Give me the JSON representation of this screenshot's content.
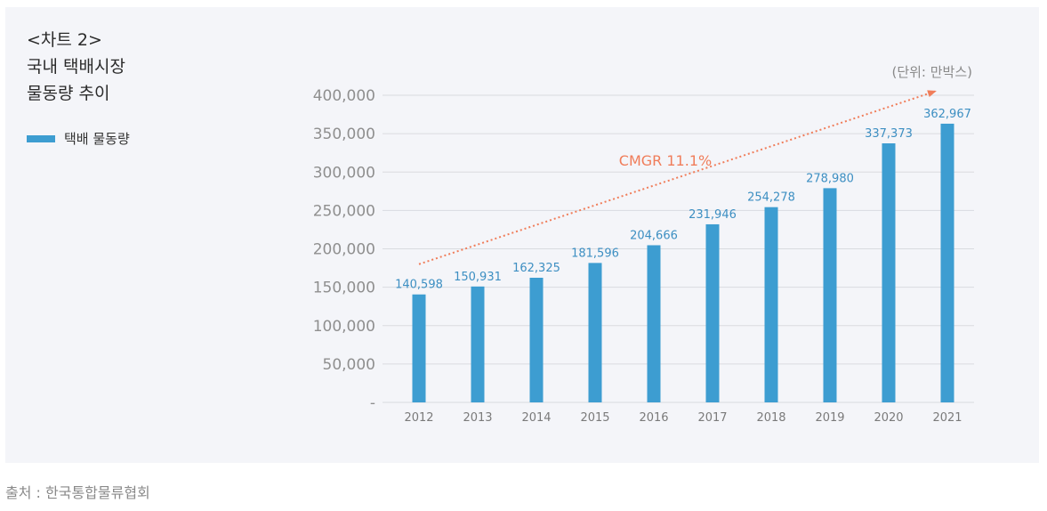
{
  "chart_data": {
    "type": "bar",
    "title_lines": [
      "<차트 2>",
      "국내 택배시장",
      "물동량 추이"
    ],
    "unit_label": "(단위: 만박스)",
    "categories": [
      "2012",
      "2013",
      "2014",
      "2015",
      "2016",
      "2017",
      "2018",
      "2019",
      "2020",
      "2021"
    ],
    "series": [
      {
        "name": "택배 물동량",
        "values": [
          140598,
          150931,
          162325,
          181596,
          204666,
          231946,
          254278,
          278980,
          337373,
          362967
        ],
        "value_labels": [
          "140,598",
          "150,931",
          "162,325",
          "181,596",
          "204,666",
          "231,946",
          "254,278",
          "278,980",
          "337,373",
          "362,967"
        ]
      }
    ],
    "y_ticks": [
      0,
      50000,
      100000,
      150000,
      200000,
      250000,
      300000,
      350000,
      400000
    ],
    "y_tick_labels": [
      "-",
      "50,000",
      "100,000",
      "150,000",
      "200,000",
      "250,000",
      "300,000",
      "350,000",
      "400,000"
    ],
    "ylim": [
      0,
      400000
    ],
    "grid": true,
    "legend_position": "top-left",
    "annotation": {
      "text": "CMGR 11.1%",
      "start_value": 180000,
      "end_value": 405000
    },
    "colors": {
      "bar": "#3d9dd1",
      "label": "#3d8fc2",
      "trend": "#f07d5a",
      "grid": "#d9dbe0"
    }
  },
  "source": "출처 : 한국통합물류협회"
}
